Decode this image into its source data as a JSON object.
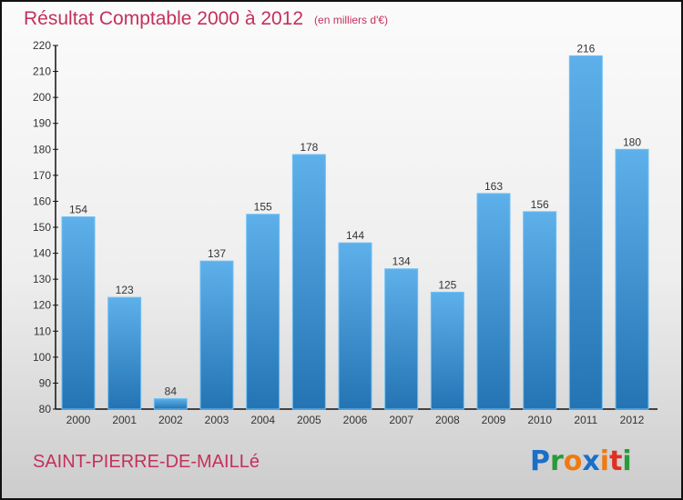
{
  "chart_data": {
    "type": "bar",
    "title": "Résultat Comptable 2000 à 2012",
    "subtitle": "(en milliers d'€)",
    "categories": [
      "2000",
      "2001",
      "2002",
      "2003",
      "2004",
      "2005",
      "2006",
      "2007",
      "2008",
      "2009",
      "2010",
      "2011",
      "2012"
    ],
    "values": [
      154,
      123,
      84,
      137,
      155,
      178,
      144,
      134,
      125,
      163,
      156,
      216,
      180
    ],
    "ylim": [
      80,
      220
    ],
    "yticks": [
      80,
      90,
      100,
      110,
      120,
      130,
      140,
      150,
      160,
      170,
      180,
      190,
      200,
      210,
      220
    ],
    "xlabel": "",
    "ylabel": "",
    "bar_color": "#3a8fd3"
  },
  "footer": {
    "city": "SAINT-PIERRE-DE-MAILLé",
    "logo": "Proxiti"
  }
}
